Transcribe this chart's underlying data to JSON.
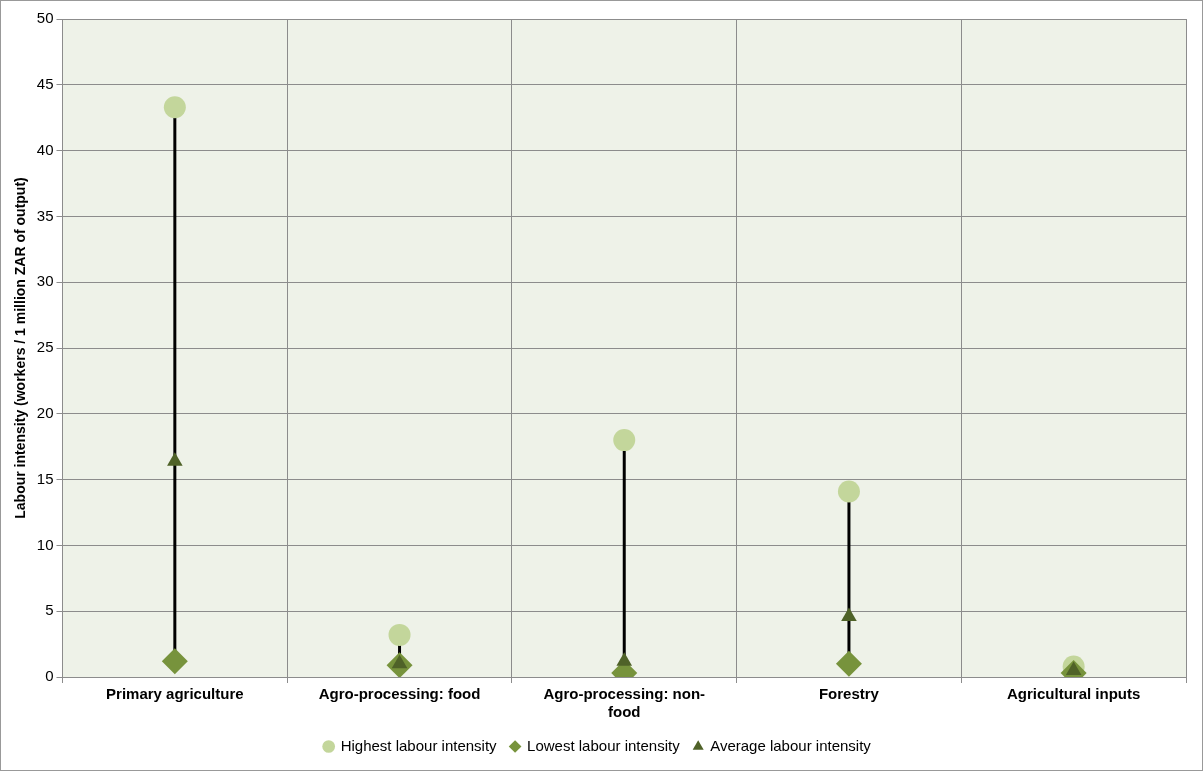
{
  "chart_data": {
    "type": "scatter",
    "ylabel": "Labour intensity (workers / 1 million ZAR of output)",
    "categories": [
      "Primary agriculture",
      "Agro-processing: food",
      "Agro-processing: non-food",
      "Forestry",
      "Agricultural inputs"
    ],
    "series": [
      {
        "name": "Highest labour intensity",
        "color": "#c3d69b",
        "marker": "circle",
        "values": [
          43.3,
          3.2,
          18.0,
          14.1,
          0.8
        ]
      },
      {
        "name": "Lowest labour intensity",
        "color": "#77933c",
        "marker": "diamond",
        "values": [
          1.2,
          0.9,
          0.3,
          1.0,
          0.3
        ]
      },
      {
        "name": "Average labour intensity",
        "color": "#4f6228",
        "marker": "triangle",
        "values": [
          16.4,
          1.0,
          1.2,
          4.6,
          0.5
        ]
      }
    ],
    "ylim": [
      0,
      50
    ],
    "yticks": [
      0,
      5,
      10,
      15,
      20,
      25,
      30,
      35,
      40,
      45,
      50
    ],
    "grid": true,
    "legend": "bottom"
  }
}
